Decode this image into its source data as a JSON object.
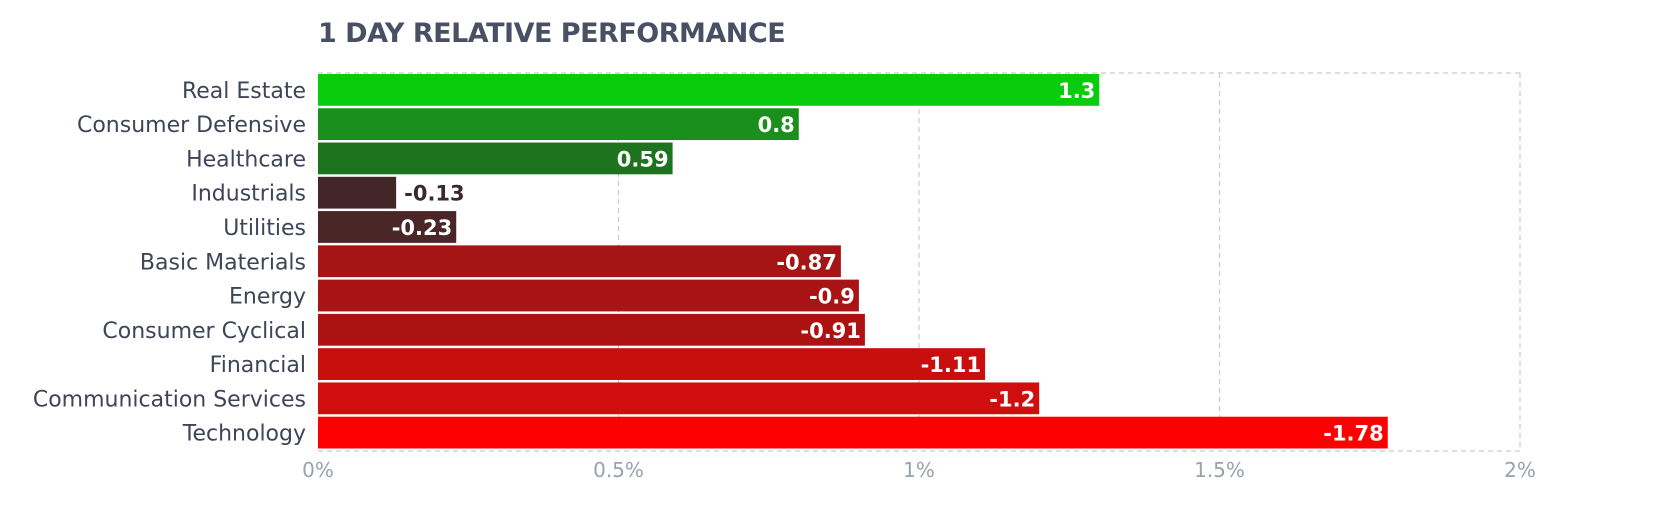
{
  "chart_data": {
    "type": "bar",
    "orientation": "horizontal",
    "title": "1 DAY RELATIVE PERFORMANCE",
    "categories": [
      "Real Estate",
      "Consumer Defensive",
      "Healthcare",
      "Industrials",
      "Utilities",
      "Basic Materials",
      "Energy",
      "Consumer Cyclical",
      "Financial",
      "Communication Services",
      "Technology"
    ],
    "values": [
      1.3,
      0.8,
      0.59,
      -0.13,
      -0.23,
      -0.87,
      -0.9,
      -0.91,
      -1.11,
      -1.2,
      -1.78
    ],
    "value_labels": [
      "1.3",
      "0.8",
      "0.59",
      "-0.13",
      "-0.23",
      "-0.87",
      "-0.9",
      "-0.91",
      "-1.11",
      "-1.2",
      "-1.78"
    ],
    "bar_colors": [
      "#08cc0c",
      "#1b8f1c",
      "#1e731f",
      "#432728",
      "#4a2627",
      "#a61515",
      "#a81313",
      "#ac1212",
      "#c90e0e",
      "#d00e0e",
      "#ff0000"
    ],
    "xlim": [
      0,
      2
    ],
    "xticks": [
      0,
      0.5,
      1,
      1.5,
      2
    ],
    "xtick_labels": [
      "0%",
      "0.5%",
      "1%",
      "1.5%",
      "2%"
    ],
    "xlabel": "",
    "ylabel": "",
    "grid": true,
    "legend": "none"
  }
}
